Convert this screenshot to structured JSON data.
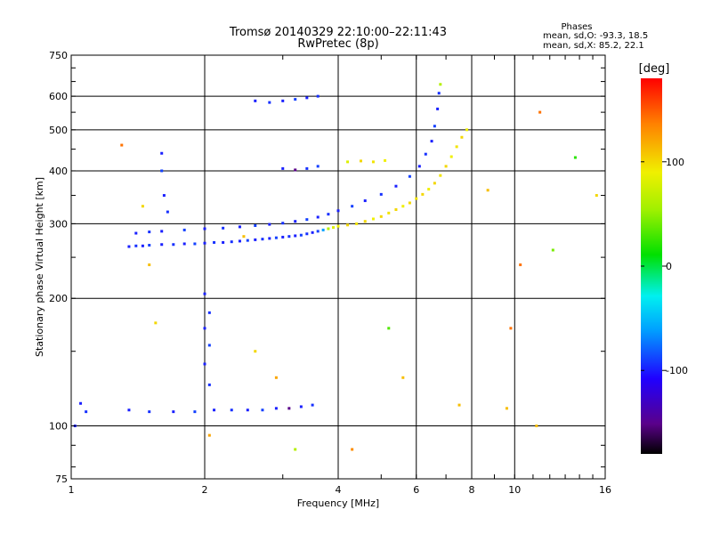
{
  "chart_data": {
    "type": "scatter",
    "title": "Tromsø 20140329 22:10:00–22:11:43",
    "subtitle": "RwPretec (8p)",
    "xlabel": "Frequency [MHz]",
    "ylabel": "Stationary phase Virtual Height [km]",
    "x_scale": "log",
    "y_scale": "log",
    "xlim": [
      1,
      16
    ],
    "ylim": [
      75,
      750
    ],
    "x_ticks": [
      1,
      2,
      4,
      6,
      8,
      10,
      16
    ],
    "y_ticks": [
      75,
      100,
      200,
      300,
      400,
      500,
      600,
      750
    ],
    "grid": true,
    "phases_legend": {
      "heading": "Phases",
      "line_o": "mean, sd,O: -93.3, 18.5",
      "line_x": "mean, sd,X:  85.2, 22.1"
    },
    "colorbar": {
      "label": "[deg]",
      "ticks": [
        -100,
        0,
        100
      ],
      "range": [
        -180,
        180
      ]
    },
    "series": [
      {
        "points": [
          [
            1.35,
            265,
            -100
          ],
          [
            1.4,
            266,
            -95
          ],
          [
            1.45,
            266,
            -100
          ],
          [
            1.5,
            267,
            -90
          ],
          [
            1.6,
            268,
            -100
          ],
          [
            1.7,
            268,
            -95
          ],
          [
            1.8,
            269,
            -100
          ],
          [
            1.9,
            269,
            -90
          ],
          [
            2.0,
            270,
            -100
          ],
          [
            2.1,
            271,
            -95
          ],
          [
            2.2,
            271,
            -100
          ],
          [
            2.3,
            272,
            -95
          ],
          [
            2.4,
            273,
            -100
          ],
          [
            2.5,
            274,
            -90
          ],
          [
            2.6,
            275,
            -100
          ],
          [
            2.7,
            276,
            -95
          ],
          [
            2.8,
            277,
            -100
          ],
          [
            2.9,
            278,
            -90
          ],
          [
            3.0,
            279,
            -100
          ],
          [
            3.1,
            280,
            -95
          ],
          [
            3.2,
            281,
            -100
          ],
          [
            3.3,
            282,
            -90
          ],
          [
            3.4,
            284,
            -95
          ],
          [
            3.5,
            286,
            -100
          ],
          [
            3.6,
            288,
            -90
          ],
          [
            3.7,
            290,
            -60
          ],
          [
            3.8,
            292,
            60
          ],
          [
            3.9,
            294,
            80
          ],
          [
            4.0,
            296,
            90
          ],
          [
            4.2,
            298,
            100
          ],
          [
            4.4,
            300,
            95
          ],
          [
            4.6,
            304,
            100
          ],
          [
            4.8,
            308,
            90
          ],
          [
            5.0,
            312,
            100
          ],
          [
            5.2,
            318,
            95
          ],
          [
            5.4,
            324,
            100
          ],
          [
            5.6,
            330,
            90
          ],
          [
            5.8,
            336,
            100
          ],
          [
            6.0,
            344,
            95
          ],
          [
            6.2,
            352,
            100
          ],
          [
            6.4,
            362,
            90
          ],
          [
            6.6,
            374,
            100
          ],
          [
            6.8,
            390,
            95
          ],
          [
            7.0,
            410,
            100
          ],
          [
            7.2,
            432,
            90
          ],
          [
            7.4,
            456,
            95
          ],
          [
            7.6,
            480,
            100
          ],
          [
            7.8,
            500,
            90
          ]
        ]
      },
      {
        "points": [
          [
            1.4,
            285,
            -100
          ],
          [
            1.5,
            287,
            -95
          ],
          [
            1.6,
            288,
            -100
          ],
          [
            1.8,
            290,
            -90
          ],
          [
            2.0,
            292,
            -100
          ],
          [
            2.2,
            293,
            -95
          ],
          [
            2.4,
            295,
            -100
          ],
          [
            2.6,
            297,
            -90
          ],
          [
            2.8,
            299,
            -100
          ],
          [
            3.0,
            301,
            -95
          ],
          [
            3.2,
            304,
            -100
          ],
          [
            3.4,
            307,
            -90
          ],
          [
            3.6,
            311,
            -100
          ],
          [
            3.8,
            316,
            -95
          ],
          [
            4.0,
            322,
            -100
          ],
          [
            4.3,
            330,
            -90
          ],
          [
            4.6,
            340,
            -100
          ],
          [
            5.0,
            352,
            -95
          ],
          [
            5.4,
            368,
            -100
          ],
          [
            5.8,
            388,
            -90
          ],
          [
            6.1,
            410,
            -100
          ],
          [
            6.3,
            438,
            -95
          ],
          [
            6.5,
            470,
            -100
          ],
          [
            6.6,
            510,
            -90
          ],
          [
            6.7,
            560,
            -100
          ],
          [
            6.75,
            610,
            -95
          ],
          [
            6.8,
            640,
            60
          ]
        ]
      },
      {
        "points": [
          [
            1.35,
            109,
            -100
          ],
          [
            1.5,
            108,
            -95
          ],
          [
            1.7,
            108,
            -100
          ],
          [
            1.9,
            108,
            -90
          ],
          [
            2.1,
            109,
            -100
          ],
          [
            2.3,
            109,
            -95
          ],
          [
            2.5,
            109,
            -100
          ],
          [
            2.7,
            109,
            -90
          ],
          [
            2.9,
            110,
            -100
          ],
          [
            3.1,
            110,
            -150
          ],
          [
            3.3,
            111,
            -100
          ],
          [
            3.5,
            112,
            -95
          ]
        ]
      },
      {
        "points": [
          [
            2.6,
            585,
            -100
          ],
          [
            2.8,
            580,
            -95
          ],
          [
            3.0,
            585,
            -100
          ],
          [
            3.2,
            590,
            -90
          ],
          [
            3.4,
            595,
            -100
          ],
          [
            3.6,
            600,
            -95
          ]
        ]
      },
      {
        "points": [
          [
            3.0,
            405,
            -100
          ],
          [
            3.2,
            402,
            -150
          ],
          [
            3.4,
            405,
            -95
          ],
          [
            3.6,
            410,
            -90
          ],
          [
            4.2,
            420,
            80
          ],
          [
            4.5,
            422,
            100
          ],
          [
            4.8,
            420,
            95
          ],
          [
            5.1,
            423,
            90
          ]
        ]
      },
      {
        "points": [
          [
            2.0,
            205,
            -100
          ],
          [
            2.05,
            185,
            -95
          ],
          [
            2.0,
            170,
            -100
          ],
          [
            2.05,
            155,
            -90
          ],
          [
            2.0,
            140,
            -100
          ],
          [
            2.05,
            125,
            -95
          ],
          [
            1.6,
            440,
            -100
          ],
          [
            1.6,
            400,
            -90
          ],
          [
            1.62,
            350,
            -100
          ],
          [
            1.65,
            320,
            -95
          ]
        ]
      },
      {
        "points": [
          [
            1.3,
            460,
            140
          ],
          [
            1.45,
            330,
            100
          ],
          [
            1.5,
            240,
            110
          ],
          [
            1.55,
            175,
            100
          ],
          [
            2.45,
            280,
            110
          ],
          [
            2.6,
            150,
            100
          ],
          [
            2.9,
            130,
            120
          ],
          [
            3.2,
            88,
            60
          ],
          [
            4.3,
            88,
            130
          ],
          [
            5.2,
            170,
            30
          ],
          [
            5.6,
            130,
            110
          ],
          [
            7.5,
            112,
            110
          ],
          [
            8.7,
            360,
            110
          ],
          [
            9.6,
            110,
            110
          ],
          [
            9.8,
            170,
            140
          ],
          [
            10.3,
            240,
            140
          ],
          [
            11.2,
            100,
            110
          ],
          [
            11.4,
            550,
            140
          ],
          [
            12.2,
            260,
            40
          ],
          [
            13.7,
            430,
            20
          ],
          [
            15.3,
            350,
            100
          ],
          [
            2.05,
            95,
            120
          ],
          [
            1.05,
            113,
            -100
          ],
          [
            1.08,
            108,
            -95
          ],
          [
            1.02,
            100,
            -100
          ]
        ]
      }
    ]
  }
}
